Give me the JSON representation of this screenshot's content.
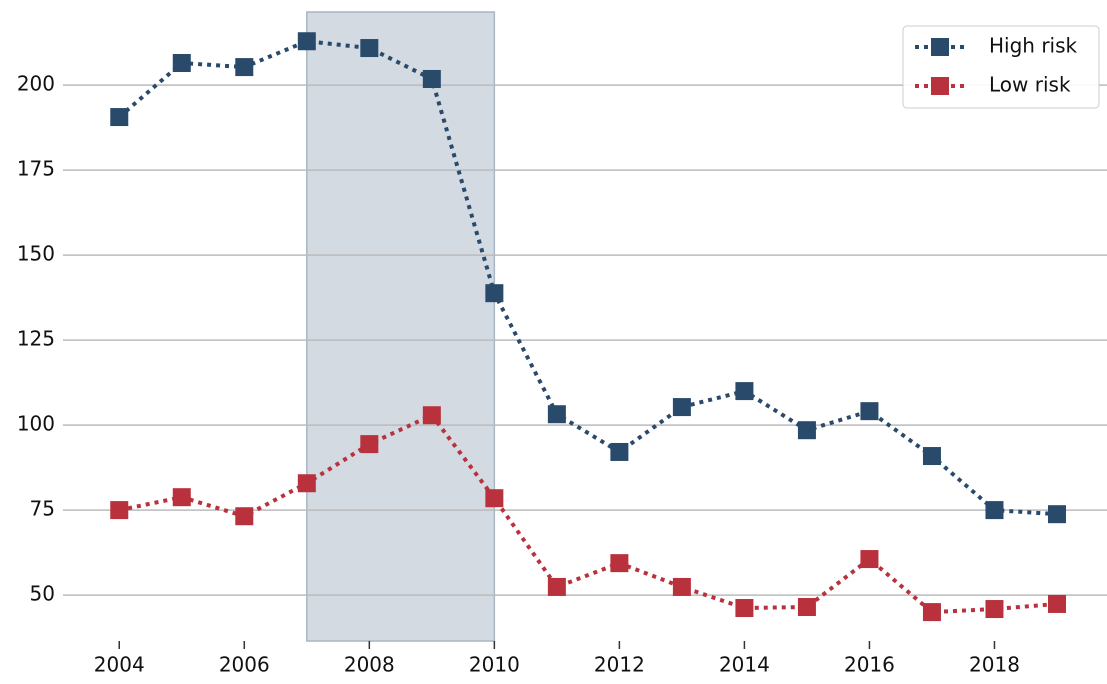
{
  "chart_data": {
    "type": "line",
    "x": [
      2004,
      2005,
      2006,
      2007,
      2008,
      2009,
      2010,
      2011,
      2012,
      2013,
      2014,
      2015,
      2016,
      2017,
      2018,
      2019
    ],
    "series": [
      {
        "name": "High risk",
        "color": "#2a4a6b",
        "values": [
          190.6,
          206.5,
          205.3,
          212.9,
          210.9,
          201.8,
          138.8,
          103.2,
          92.1,
          105.3,
          110,
          98.5,
          104.1,
          90.9,
          75,
          73.8
        ]
      },
      {
        "name": "Low risk",
        "color": "#b8313c",
        "values": [
          75,
          78.8,
          73.2,
          82.9,
          94.4,
          102.9,
          78.5,
          52.4,
          59.4,
          52.4,
          46.2,
          46.5,
          60.6,
          45,
          45.9,
          47.4
        ]
      }
    ],
    "xlim": [
      2003.1,
      2019.8
    ],
    "xticks": [
      2004,
      2006,
      2008,
      2010,
      2012,
      2014,
      2016,
      2018
    ],
    "ylim": [
      36.5,
      221.5
    ],
    "yticks": [
      50,
      75,
      100,
      125,
      150,
      175,
      200
    ],
    "shaded_span": [
      2007,
      2010
    ],
    "shade_color": "#d3dae1",
    "grid": true,
    "legend": "upper right"
  }
}
